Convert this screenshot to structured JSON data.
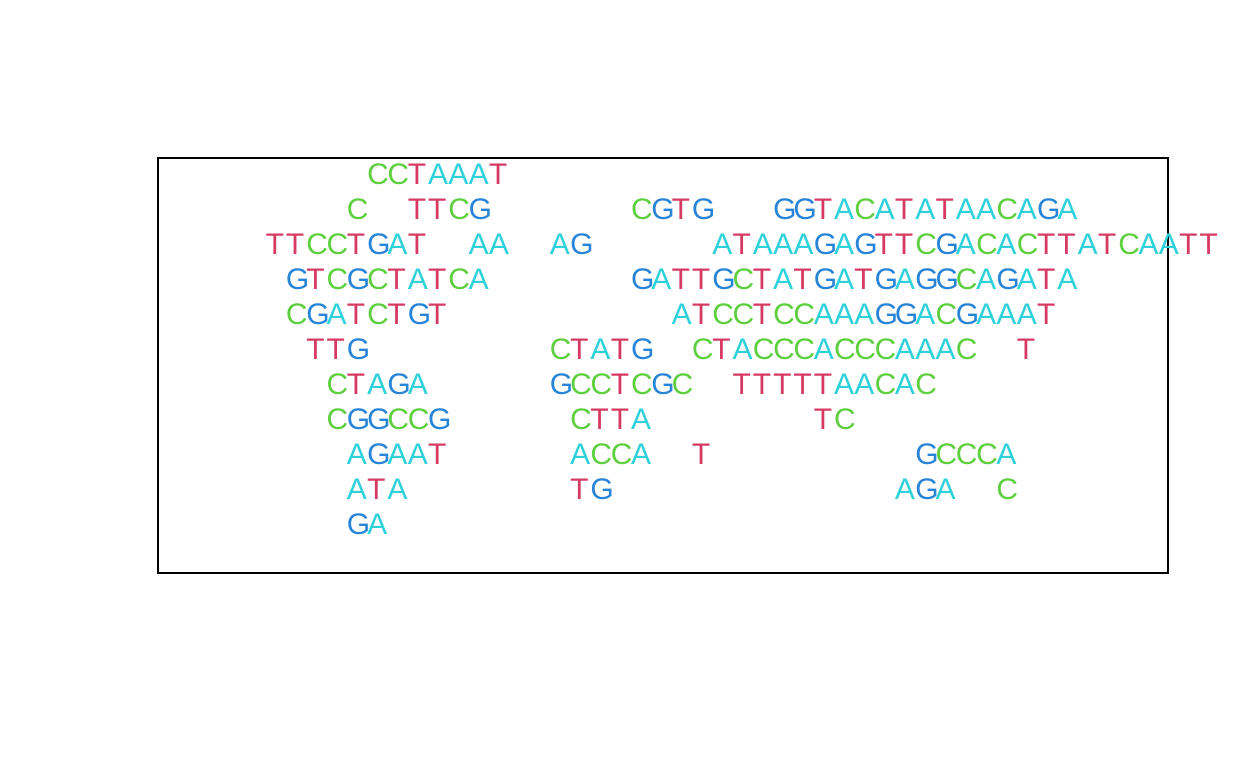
{
  "colors": {
    "A": "#2ed1d9",
    "C": "#5ecf3e",
    "G": "#2784d6",
    "T": "#d63a63"
  },
  "sequence_rows": [
    "       CCTAAAT",
    "      C  TTCG       CGTG   GGTACATATAACAGA",
    "  TTCCTGAT  AA  AG      ATAAAGAGTTCGACACTTATCAATT",
    "   GTCGCTATCA       GATTGCTATGATGAGGCAGATA",
    "   CGATCTGT           ATCCTCCAAAGGACGAAAT",
    "    TTG         CTATG  CTACCCACCCAAAC  T",
    "     CTAGA      GCCTCGC  TTTTTAACAC",
    "     CGGCCG      CTTA        TC",
    "      AGAAT      ACCA  T          GCCCA",
    "      ATA        TG              AGA  C",
    "      GA"
  ]
}
